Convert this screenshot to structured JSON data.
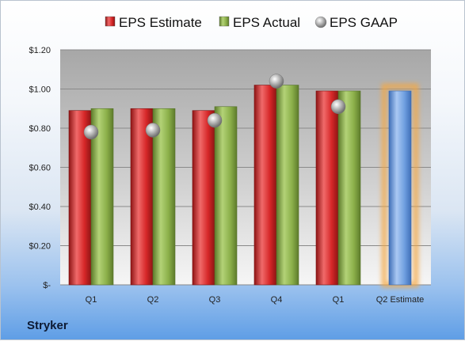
{
  "chart_data": {
    "type": "bar",
    "categories": [
      "Q1",
      "Q2",
      "Q3",
      "Q4",
      "Q1",
      "Q2 Estimate"
    ],
    "series": [
      {
        "name": "EPS Estimate",
        "type": "bar",
        "color": "#d62728",
        "values": [
          0.89,
          0.9,
          0.89,
          1.02,
          0.99,
          null
        ]
      },
      {
        "name": "EPS Actual",
        "type": "bar",
        "color": "#8cb04a",
        "values": [
          0.9,
          0.9,
          0.91,
          1.02,
          0.99,
          null
        ]
      },
      {
        "name": "EPS GAAP",
        "type": "scatter",
        "color": "#a9a9a9",
        "values": [
          0.78,
          0.79,
          0.84,
          1.04,
          0.91,
          null
        ]
      }
    ],
    "highlight": {
      "category": "Q2 Estimate",
      "value": 0.99,
      "color": "#6f9fe0",
      "glow": "#f5a742"
    },
    "y_ticks": [
      {
        "value": 0,
        "label": "$-"
      },
      {
        "value": 0.2,
        "label": "$0.20"
      },
      {
        "value": 0.4,
        "label": "$0.40"
      },
      {
        "value": 0.6,
        "label": "$0.60"
      },
      {
        "value": 0.8,
        "label": "$0.80"
      },
      {
        "value": 1.0,
        "label": "$1.00"
      },
      {
        "value": 1.2,
        "label": "$1.20"
      }
    ],
    "ylim": [
      0,
      1.2
    ],
    "grid": true,
    "legend_position": "top"
  },
  "company": "Stryker"
}
